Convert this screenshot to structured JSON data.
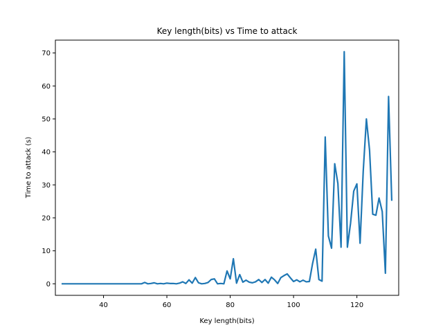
{
  "chart_data": {
    "type": "line",
    "title": "Key length(bits) vs Time to attack",
    "xlabel": "Key length(bits)",
    "ylabel": "Time to attack (s)",
    "xlim": [
      24.8,
      133.2
    ],
    "ylim": [
      -3.5,
      73.9
    ],
    "xticks": [
      40,
      60,
      80,
      100,
      120
    ],
    "yticks": [
      0,
      10,
      20,
      30,
      40,
      50,
      60,
      70
    ],
    "grid": false,
    "legend": "none",
    "line_color": "#1f77b4",
    "series": [
      {
        "x": [
          27,
          28,
          29,
          30,
          31,
          32,
          33,
          34,
          35,
          36,
          37,
          38,
          39,
          40,
          41,
          42,
          43,
          44,
          45,
          46,
          47,
          48,
          49,
          50,
          51,
          52,
          53,
          54,
          55,
          56,
          57,
          58,
          59,
          60,
          61,
          62,
          63,
          64,
          65,
          66,
          67,
          68,
          69,
          70,
          71,
          72,
          73,
          74,
          75,
          76,
          77,
          78,
          79,
          80,
          81,
          82,
          83,
          84,
          85,
          86,
          87,
          88,
          89,
          90,
          91,
          92,
          93,
          94,
          95,
          96,
          97,
          98,
          99,
          100,
          101,
          102,
          103,
          104,
          105,
          106,
          107,
          108,
          109,
          110,
          111,
          112,
          113,
          114,
          115,
          116,
          117,
          118,
          119,
          120,
          121,
          122,
          123,
          124,
          125,
          126,
          127,
          128,
          129,
          130,
          131
        ],
        "y": [
          0,
          0,
          0,
          0,
          0,
          0,
          0,
          0,
          0,
          0,
          0,
          0,
          0,
          0,
          0,
          0,
          0,
          0,
          0,
          0,
          0,
          0,
          0,
          0,
          0,
          0,
          0.4,
          0,
          0.1,
          0.3,
          0,
          0.1,
          0,
          0.2,
          0.1,
          0.1,
          0,
          0.2,
          0.6,
          0.1,
          1.2,
          0.2,
          1.9,
          0.3,
          0,
          0.1,
          0.4,
          1.3,
          1.5,
          0,
          0.1,
          0,
          3.9,
          1.5,
          7.6,
          0.2,
          2.8,
          0.5,
          1.1,
          0.5,
          0.3,
          0.6,
          1.3,
          0.4,
          1.3,
          0.2,
          2,
          1.2,
          0.1,
          1.9,
          2.5,
          3,
          1.8,
          0.7,
          1.2,
          0.6,
          1.1,
          0.6,
          0.7,
          6.1,
          10.5,
          1.3,
          0.8,
          44.5,
          14.5,
          10.8,
          36.4,
          30.4,
          11.1,
          70.4,
          11.1,
          18.4,
          28.1,
          30.3,
          12.3,
          34.1,
          50,
          40.5,
          21.1,
          20.8,
          26,
          21.9,
          3.2,
          56.8,
          25.4
        ]
      }
    ]
  }
}
